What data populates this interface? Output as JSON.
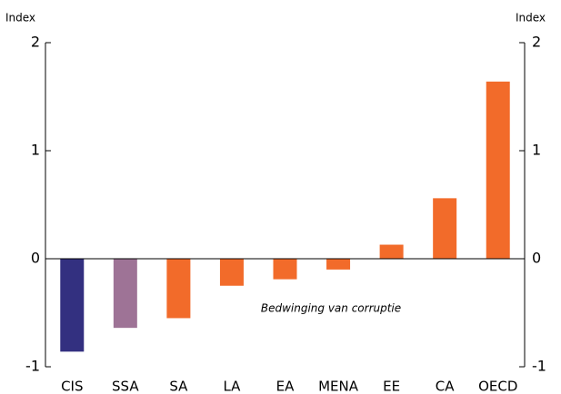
{
  "chart_data": {
    "type": "bar",
    "y_label": "Index",
    "y2_label": "Index",
    "annotation": "Bedwinging van corruptie",
    "categories": [
      "CIS",
      "SSA",
      "SA",
      "LA",
      "EA",
      "MENA",
      "EE",
      "CA",
      "OECD"
    ],
    "values": [
      -0.86,
      -0.64,
      -0.55,
      -0.25,
      -0.19,
      -0.1,
      0.13,
      0.56,
      1.64
    ],
    "colors": [
      "#333080",
      "#9e7396",
      "#f26b2a",
      "#f26b2a",
      "#f26b2a",
      "#f26b2a",
      "#f26b2a",
      "#f26b2a",
      "#f26b2a"
    ],
    "ylim": [
      -1,
      2
    ],
    "yticks": [
      -1,
      0,
      1,
      2
    ],
    "y2lim": [
      -1,
      2
    ],
    "y2ticks": [
      -1,
      0,
      1,
      2
    ],
    "grid": false
  }
}
